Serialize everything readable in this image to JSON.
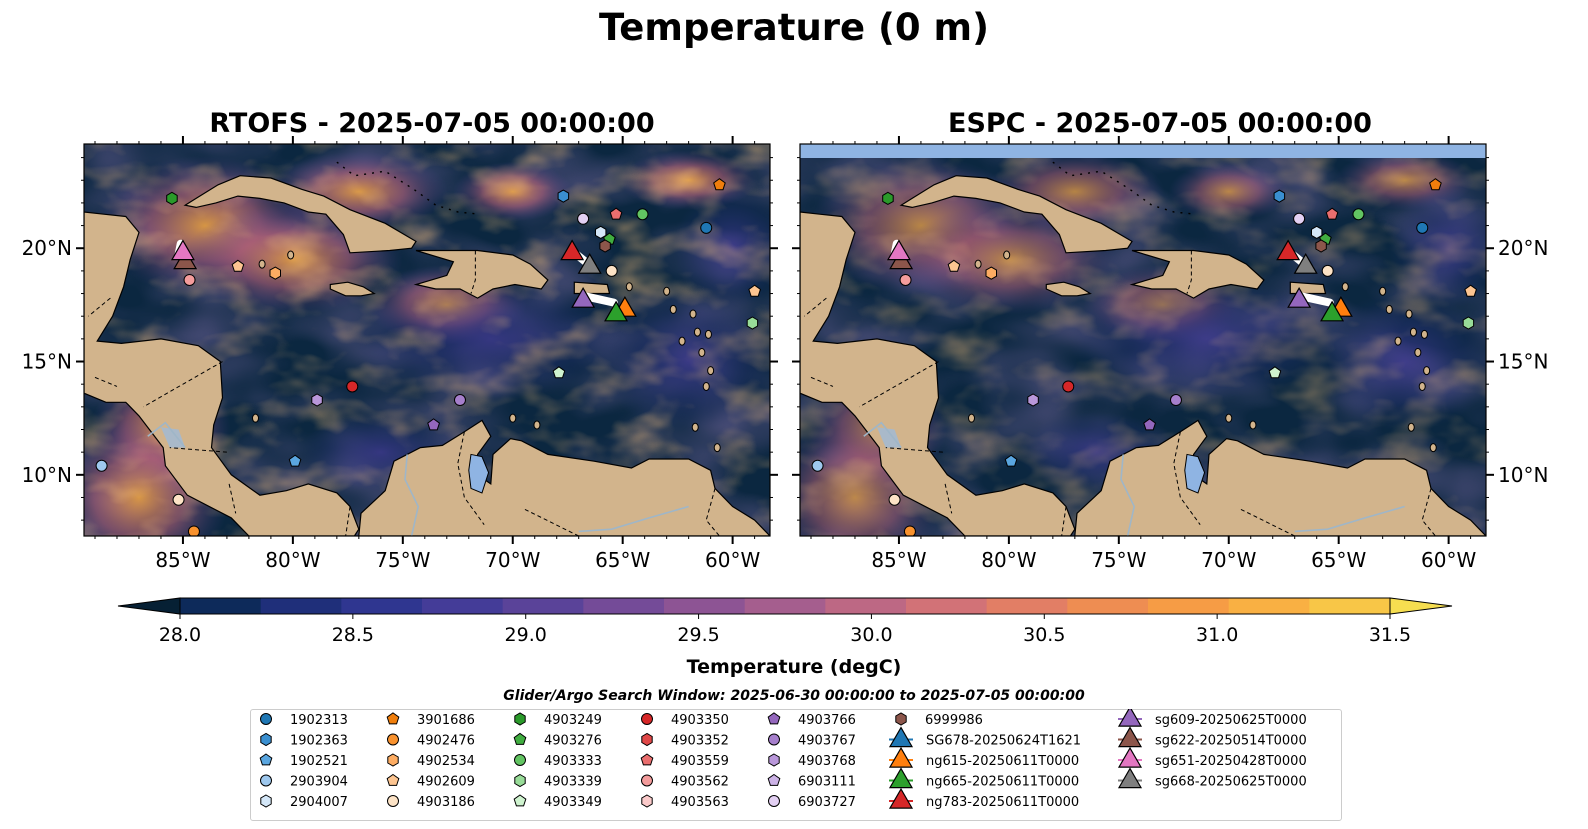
{
  "title": "Temperature (0 m)",
  "panels": [
    {
      "id": "rtofs",
      "title": "RTOFS - 2025-07-05 00:00:00"
    },
    {
      "id": "espc",
      "title": "ESPC - 2025-07-05 00:00:00"
    }
  ],
  "map_extent": {
    "lon_min": -89.5,
    "lon_max": -58.3,
    "lat_min": 7.3,
    "lat_max": 24.6
  },
  "lon_ticks": [
    {
      "value": -85,
      "label": "85°W"
    },
    {
      "value": -80,
      "label": "80°W"
    },
    {
      "value": -75,
      "label": "75°W"
    },
    {
      "value": -70,
      "label": "70°W"
    },
    {
      "value": -65,
      "label": "65°W"
    },
    {
      "value": -60,
      "label": "60°W"
    }
  ],
  "lat_ticks": [
    {
      "value": 10,
      "label": "10°N"
    },
    {
      "value": 15,
      "label": "15°N"
    },
    {
      "value": 20,
      "label": "20°N"
    }
  ],
  "colorbar": {
    "label": "Temperature (degC)",
    "min": 28.0,
    "max": 31.5,
    "ticks": [
      "28.0",
      "28.5",
      "29.0",
      "29.5",
      "30.0",
      "30.5",
      "31.0",
      "31.5"
    ],
    "colors": [
      "#062034",
      "#0d2a5a",
      "#1f2f7a",
      "#2f3690",
      "#443c98",
      "#5a4399",
      "#744b98",
      "#8d5494",
      "#a55e8e",
      "#bd6884",
      "#d27277",
      "#e27e65",
      "#ee8d52",
      "#f69c45",
      "#f9b043",
      "#f8c647",
      "#f6de50"
    ],
    "extend": "both"
  },
  "legend": {
    "title": "Glider/Argo Search Window: 2025-06-30 00:00:00 to 2025-07-05 00:00:00",
    "columns": [
      [
        {
          "label": "1902313",
          "marker": "circle",
          "color": "#1f77b4"
        },
        {
          "label": "1902363",
          "marker": "hexagon",
          "color": "#3a8fd0"
        },
        {
          "label": "1902521",
          "marker": "pentagon",
          "color": "#5aa6e0"
        },
        {
          "label": "2903904",
          "marker": "circle",
          "color": "#9ec8ee"
        },
        {
          "label": "2904007",
          "marker": "hexagon",
          "color": "#d4e7f8"
        }
      ],
      [
        {
          "label": "3901686",
          "marker": "pentagon",
          "color": "#f07e0c"
        },
        {
          "label": "4902476",
          "marker": "circle",
          "color": "#f9922e"
        },
        {
          "label": "4902534",
          "marker": "hexagon",
          "color": "#fdac62"
        },
        {
          "label": "4902609",
          "marker": "pentagon",
          "color": "#fdc591"
        },
        {
          "label": "4903186",
          "marker": "circle",
          "color": "#fde3c6"
        }
      ],
      [
        {
          "label": "4903249",
          "marker": "hexagon",
          "color": "#2a9a2a"
        },
        {
          "label": "4903276",
          "marker": "pentagon",
          "color": "#40ad40"
        },
        {
          "label": "4903333",
          "marker": "circle",
          "color": "#62c462"
        },
        {
          "label": "4903339",
          "marker": "hexagon",
          "color": "#98dc98"
        },
        {
          "label": "4903349",
          "marker": "pentagon",
          "color": "#cff3cf"
        }
      ],
      [
        {
          "label": "4903350",
          "marker": "circle",
          "color": "#d62728"
        },
        {
          "label": "4903352",
          "marker": "hexagon",
          "color": "#e04848"
        },
        {
          "label": "4903559",
          "marker": "pentagon",
          "color": "#ea6e6e"
        },
        {
          "label": "4903562",
          "marker": "circle",
          "color": "#f49c9c"
        },
        {
          "label": "4903563",
          "marker": "hexagon",
          "color": "#fbcaca"
        }
      ],
      [
        {
          "label": "4903766",
          "marker": "pentagon",
          "color": "#9467bd"
        },
        {
          "label": "4903767",
          "marker": "circle",
          "color": "#a67fcc"
        },
        {
          "label": "4903768",
          "marker": "hexagon",
          "color": "#b997da"
        },
        {
          "label": "6903111",
          "marker": "pentagon",
          "color": "#ccb2e6"
        },
        {
          "label": "6903727",
          "marker": "circle",
          "color": "#e3d0f3"
        }
      ],
      [
        {
          "label": "6999986",
          "marker": "hexagon",
          "color": "#8c564b"
        },
        {
          "label": "SG678-20250624T1621",
          "marker": "triangle",
          "color": "#1f77b4"
        },
        {
          "label": "ng615-20250611T0000",
          "marker": "triangle",
          "color": "#ff7f0e"
        },
        {
          "label": "ng665-20250611T0000",
          "marker": "triangle",
          "color": "#2ca02c"
        },
        {
          "label": "ng783-20250611T0000",
          "marker": "triangle",
          "color": "#d62728"
        }
      ],
      [
        {
          "label": "sg609-20250625T0000",
          "marker": "triangle",
          "color": "#9467bd"
        },
        {
          "label": "sg622-20250514T0000",
          "marker": "triangle",
          "color": "#8c564b"
        },
        {
          "label": "sg651-20250428T0000",
          "marker": "triangle",
          "color": "#e377c2"
        },
        {
          "label": "sg668-20250625T0000",
          "marker": "triangle",
          "color": "#7f7f7f"
        }
      ]
    ]
  },
  "argo_floats": [
    {
      "label": "4903249",
      "lon": -85.5,
      "lat": 22.2,
      "marker": "hexagon",
      "color": "#2a9a2a"
    },
    {
      "label": "1902363",
      "lon": -67.7,
      "lat": 22.3,
      "marker": "hexagon",
      "color": "#3a8fd0"
    },
    {
      "label": "3901686",
      "lon": -60.6,
      "lat": 22.8,
      "marker": "pentagon",
      "color": "#f07e0c"
    },
    {
      "label": "4903559",
      "lon": -65.3,
      "lat": 21.5,
      "marker": "pentagon",
      "color": "#ea6e6e"
    },
    {
      "label": "4903333",
      "lon": -64.1,
      "lat": 21.5,
      "marker": "circle",
      "color": "#62c462"
    },
    {
      "label": "6903727",
      "lon": -66.8,
      "lat": 21.3,
      "marker": "circle",
      "color": "#e3d0f3"
    },
    {
      "label": "1902313",
      "lon": -61.2,
      "lat": 20.9,
      "marker": "circle",
      "color": "#1f77b4"
    },
    {
      "label": "2904007",
      "lon": -66.0,
      "lat": 20.7,
      "marker": "hexagon",
      "color": "#d4e7f8"
    },
    {
      "label": "4903276",
      "lon": -65.6,
      "lat": 20.4,
      "marker": "pentagon",
      "color": "#40ad40"
    },
    {
      "label": "6999986",
      "lon": -65.8,
      "lat": 20.1,
      "marker": "hexagon",
      "color": "#8c564b"
    },
    {
      "label": "4902609",
      "lon": -82.5,
      "lat": 19.2,
      "marker": "pentagon",
      "color": "#fdc591"
    },
    {
      "label": "4902534",
      "lon": -80.8,
      "lat": 18.9,
      "marker": "hexagon",
      "color": "#fdac62"
    },
    {
      "label": "4903562",
      "lon": -84.7,
      "lat": 18.6,
      "marker": "circle",
      "color": "#f49c9c"
    },
    {
      "label": "4903186",
      "lon": -65.5,
      "lat": 19.0,
      "marker": "circle",
      "color": "#fde3c6"
    },
    {
      "label": "4902609",
      "lon": -59.0,
      "lat": 18.1,
      "marker": "pentagon",
      "color": "#fdc591"
    },
    {
      "label": "4903339",
      "lon": -59.1,
      "lat": 16.7,
      "marker": "hexagon",
      "color": "#98dc98"
    },
    {
      "label": "4903349",
      "lon": -67.9,
      "lat": 14.5,
      "marker": "pentagon",
      "color": "#cff3cf"
    },
    {
      "label": "4903350",
      "lon": -77.3,
      "lat": 13.9,
      "marker": "circle",
      "color": "#d62728"
    },
    {
      "label": "4903768",
      "lon": -78.9,
      "lat": 13.3,
      "marker": "hexagon",
      "color": "#b997da"
    },
    {
      "label": "4903767",
      "lon": -72.4,
      "lat": 13.3,
      "marker": "circle",
      "color": "#a67fcc"
    },
    {
      "label": "4903766",
      "lon": -73.6,
      "lat": 12.2,
      "marker": "pentagon",
      "color": "#9467bd"
    },
    {
      "label": "1902521",
      "lon": -79.9,
      "lat": 10.6,
      "marker": "pentagon",
      "color": "#5aa6e0"
    },
    {
      "label": "2903904",
      "lon": -88.7,
      "lat": 10.4,
      "marker": "circle",
      "color": "#9ec8ee"
    },
    {
      "label": "4903186",
      "lon": -85.2,
      "lat": 8.9,
      "marker": "circle",
      "color": "#fde3c6"
    },
    {
      "label": "4902476",
      "lon": -84.5,
      "lat": 7.5,
      "marker": "circle",
      "color": "#f9922e"
    }
  ],
  "gliders": [
    {
      "label": "sg622-20250514T0000",
      "lon": -84.9,
      "lat": 19.5,
      "color": "#8c564b"
    },
    {
      "label": "sg651-20250428T0000",
      "lon": -85.0,
      "lat": 19.9,
      "color": "#e377c2"
    },
    {
      "label": "ng783-20250611T0000",
      "lon": -67.3,
      "lat": 19.9,
      "color": "#d62728"
    },
    {
      "label": "sg668-20250625T0000",
      "lon": -66.5,
      "lat": 19.3,
      "color": "#7f7f7f"
    },
    {
      "label": "sg609-20250625T0000",
      "lon": -66.8,
      "lat": 17.8,
      "color": "#9467bd"
    },
    {
      "label": "ng615-20250611T0000",
      "lon": -64.9,
      "lat": 17.4,
      "color": "#ff7f0e"
    },
    {
      "label": "ng665-20250611T0000",
      "lon": -65.3,
      "lat": 17.2,
      "color": "#2ca02c"
    }
  ]
}
